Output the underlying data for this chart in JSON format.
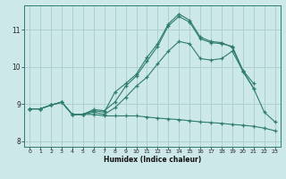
{
  "xlabel": "Humidex (Indice chaleur)",
  "background_color": "#cce8e8",
  "grid_color": "#aacccc",
  "line_color": "#2e7d6e",
  "xlim": [
    -0.5,
    23.5
  ],
  "ylim": [
    7.85,
    11.65
  ],
  "xticks": [
    0,
    1,
    2,
    3,
    4,
    5,
    6,
    7,
    8,
    9,
    10,
    11,
    12,
    13,
    14,
    15,
    16,
    17,
    18,
    19,
    20,
    21,
    22,
    23
  ],
  "yticks": [
    8,
    9,
    10,
    11
  ],
  "line1_x": [
    0,
    1,
    2,
    3,
    4,
    5,
    6,
    7,
    8,
    9,
    10,
    11,
    12,
    13,
    14,
    15,
    16,
    17,
    18,
    19,
    20,
    21
  ],
  "line1_y": [
    8.87,
    8.87,
    8.97,
    9.05,
    8.72,
    8.72,
    8.85,
    8.82,
    9.05,
    9.48,
    9.75,
    10.15,
    10.55,
    11.1,
    11.35,
    11.2,
    10.75,
    10.65,
    10.62,
    10.55,
    9.9,
    9.55
  ],
  "line2_x": [
    0,
    1,
    2,
    3,
    4,
    5,
    6,
    7,
    8,
    9,
    10,
    11,
    12,
    13,
    14,
    15,
    16,
    17,
    18,
    19,
    20,
    21
  ],
  "line2_y": [
    8.87,
    8.87,
    8.97,
    9.05,
    8.72,
    8.72,
    8.82,
    8.78,
    9.32,
    9.55,
    9.8,
    10.25,
    10.62,
    11.15,
    11.42,
    11.25,
    10.8,
    10.68,
    10.65,
    10.52,
    9.88,
    9.42
  ],
  "line3_x": [
    0,
    1,
    2,
    3,
    4,
    5,
    6,
    7,
    8,
    9,
    10,
    11,
    12,
    13,
    14,
    15,
    16,
    17,
    18,
    19,
    20,
    21,
    22,
    23
  ],
  "line3_y": [
    8.87,
    8.87,
    8.97,
    9.05,
    8.72,
    8.72,
    8.78,
    8.72,
    8.9,
    9.18,
    9.48,
    9.72,
    10.08,
    10.42,
    10.68,
    10.62,
    10.22,
    10.18,
    10.22,
    10.42,
    9.88,
    9.42,
    8.78,
    8.52
  ],
  "line4_x": [
    0,
    1,
    2,
    3,
    4,
    5,
    6,
    7,
    8,
    9,
    10,
    11,
    12,
    13,
    14,
    15,
    16,
    17,
    18,
    19,
    20,
    21,
    22,
    23
  ],
  "line4_y": [
    8.87,
    8.87,
    8.97,
    9.05,
    8.72,
    8.72,
    8.72,
    8.68,
    8.68,
    8.68,
    8.68,
    8.65,
    8.62,
    8.6,
    8.58,
    8.55,
    8.52,
    8.5,
    8.48,
    8.45,
    8.43,
    8.4,
    8.35,
    8.28
  ]
}
